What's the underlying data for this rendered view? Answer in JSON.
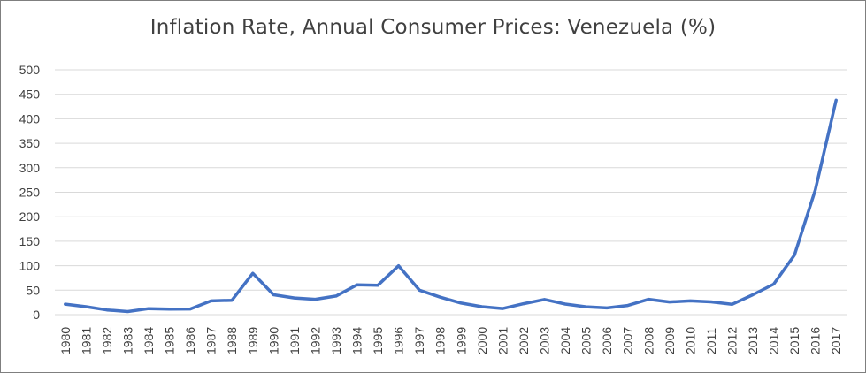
{
  "chart_data": {
    "type": "line",
    "title": "Inflation Rate, Annual Consumer Prices: Venezuela (%)",
    "xlabel": "",
    "ylabel": "",
    "ylim": [
      0,
      500
    ],
    "y_ticks": [
      "0",
      "50",
      "100",
      "150",
      "200",
      "250",
      "300",
      "350",
      "400",
      "450",
      "500"
    ],
    "grid": true,
    "legend": "none",
    "categories": [
      "1980",
      "1981",
      "1982",
      "1983",
      "1984",
      "1985",
      "1986",
      "1987",
      "1988",
      "1989",
      "1990",
      "1991",
      "1992",
      "1993",
      "1994",
      "1995",
      "1996",
      "1997",
      "1998",
      "1999",
      "2000",
      "2001",
      "2002",
      "2003",
      "2004",
      "2005",
      "2006",
      "2007",
      "2008",
      "2009",
      "2010",
      "2011",
      "2012",
      "2013",
      "2014",
      "2015",
      "2016",
      "2017"
    ],
    "series": [
      {
        "name": "Inflation Rate",
        "color": "#4472c4",
        "values": [
          21.5,
          16.2,
          9.6,
          6.3,
          12.2,
          11.4,
          11.5,
          28.1,
          29.5,
          84.5,
          40.7,
          34.2,
          31.4,
          38.1,
          60.8,
          59.9,
          99.9,
          50.0,
          35.8,
          23.6,
          16.2,
          12.5,
          22.4,
          31.1,
          21.7,
          16.0,
          13.7,
          18.7,
          31.4,
          26.0,
          28.2,
          26.1,
          21.1,
          40.6,
          62.2,
          121.7,
          254.9,
          438.1
        ]
      }
    ]
  }
}
